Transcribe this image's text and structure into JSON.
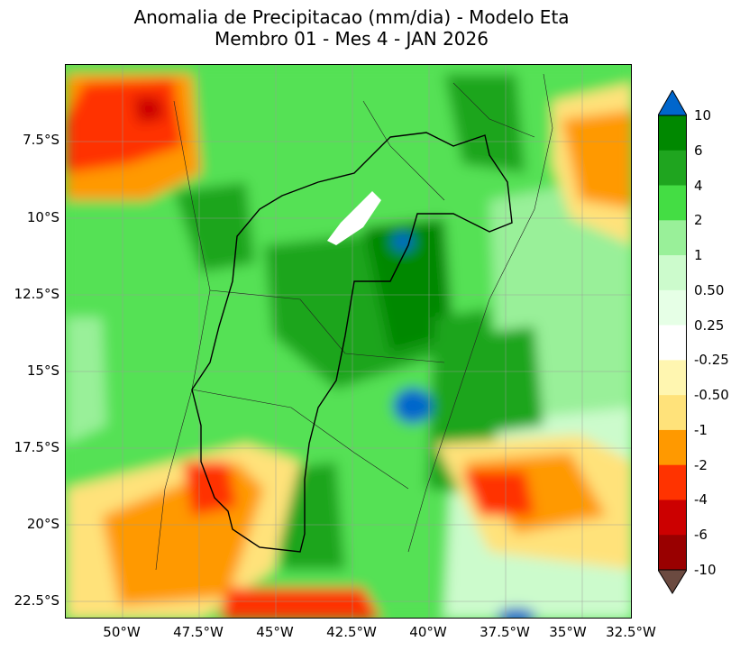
{
  "title": {
    "line1": "Anomalia de Precipitacao (mm/dia) - Modelo Eta",
    "line2": "Membro 01 - Mes 4 - JAN 2026"
  },
  "map": {
    "lat_labels": [
      "7.5°S",
      "10°S",
      "12.5°S",
      "15°S",
      "17.5°S",
      "20°S",
      "22.5°S"
    ],
    "lon_labels": [
      "50°W",
      "47.5°W",
      "45°W",
      "42.5°W",
      "40°W",
      "37.5°W",
      "35°W",
      "32.5°W"
    ],
    "regions": [
      {
        "name": "NW wet anomaly",
        "level": "4"
      },
      {
        "name": "Central basin core",
        "level": "6"
      },
      {
        "name": "Blue max north",
        "level": "10"
      },
      {
        "name": "Blue max east",
        "level": "10"
      },
      {
        "name": "NW dry patch",
        "level": "-2"
      },
      {
        "name": "SE ocean dry patch",
        "level": "-2"
      },
      {
        "name": "South dry belt",
        "level": "-2"
      }
    ]
  },
  "colorbar": {
    "labels": [
      "10",
      "6",
      "4",
      "2",
      "1",
      "0.50",
      "0.25",
      "-0.25",
      "-0.50",
      "-1",
      "-2",
      "-4",
      "-6",
      "-10"
    ],
    "colors": [
      "#0066cc",
      "#008800",
      "#1fa51f",
      "#44dd44",
      "#99f099",
      "#ccfbcc",
      "#e6ffe6",
      "#ffffff",
      "#fff6b0",
      "#ffe27a",
      "#ff9900",
      "#ff3300",
      "#cc0000",
      "#990000",
      "#6b4a40"
    ],
    "extend_top_color": "#0066cc",
    "extend_bottom_color": "#6b4a40"
  }
}
